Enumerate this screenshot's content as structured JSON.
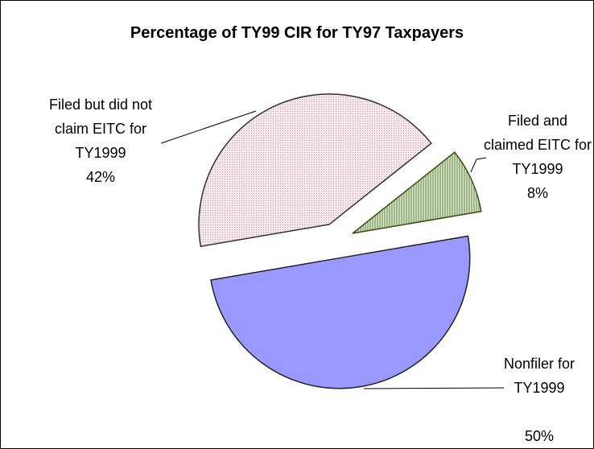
{
  "chart_data": {
    "type": "pie",
    "title": "Percentage of TY99 CIR for TY97 Taxpayers",
    "categories": [
      "Nonfiler for TY1999",
      "Filed but did not claim EITC for TY1999",
      "Filed and claimed EITC for TY1999"
    ],
    "values": [
      50,
      42,
      8
    ],
    "value_labels": [
      "50%",
      "42%",
      "8%"
    ],
    "colors": [
      "#9999ff",
      "#f4dde6",
      "#bcd3a6"
    ]
  }
}
